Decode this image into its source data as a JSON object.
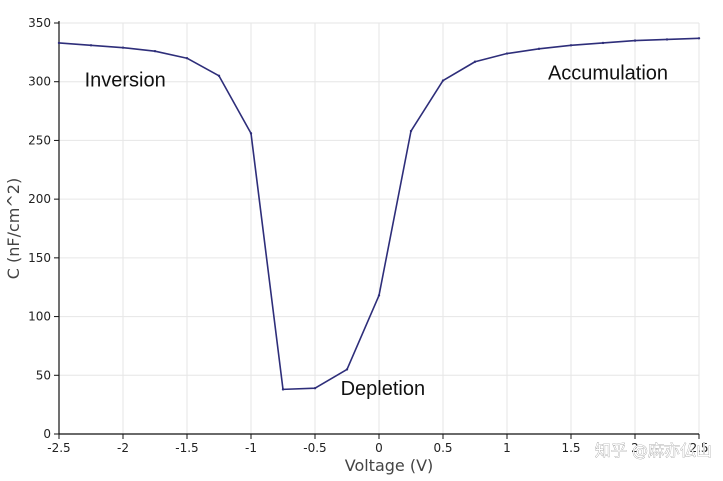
{
  "chart_data": {
    "type": "line",
    "title": "",
    "xlabel": "Voltage (V)",
    "ylabel": "C (nF/cm^2)",
    "xlim": [
      -2.5,
      2.5
    ],
    "ylim": [
      0,
      350
    ],
    "x_ticks": [
      -2.5,
      -2,
      -1.5,
      -1,
      -0.5,
      0,
      0.5,
      1,
      1.5,
      2,
      2.5
    ],
    "x_tick_labels": [
      "-2.5",
      "-2",
      "-1.5",
      "-1",
      "-0.5",
      "0",
      "0.5",
      "1",
      "1.5",
      "2",
      "2.5"
    ],
    "y_ticks": [
      0,
      50,
      100,
      150,
      200,
      250,
      300,
      350
    ],
    "y_tick_labels": [
      "0",
      "50",
      "100",
      "150",
      "200",
      "250",
      "300",
      "350"
    ],
    "grid": true,
    "series": [
      {
        "name": "",
        "color": "#2e2e7a",
        "x": [
          -2.5,
          -2.25,
          -2.0,
          -1.75,
          -1.5,
          -1.25,
          -1.0,
          -0.75,
          -0.5,
          -0.25,
          0.0,
          0.25,
          0.5,
          0.75,
          1.0,
          1.25,
          1.5,
          1.75,
          2.0,
          2.25,
          2.5
        ],
        "y": [
          333,
          331,
          329,
          326,
          320,
          305,
          256,
          38,
          39,
          55,
          118,
          258,
          301,
          317,
          324,
          328,
          331,
          333,
          335,
          336,
          337
        ]
      }
    ],
    "annotations": [
      {
        "text": "Inversion",
        "x": -2.3,
        "y": 296
      },
      {
        "text": "Accumulation",
        "x": 1.32,
        "y": 302
      },
      {
        "text": "Depletion",
        "x": -0.3,
        "y": 33
      }
    ],
    "watermark": "知乎 @麻亦仏山"
  }
}
